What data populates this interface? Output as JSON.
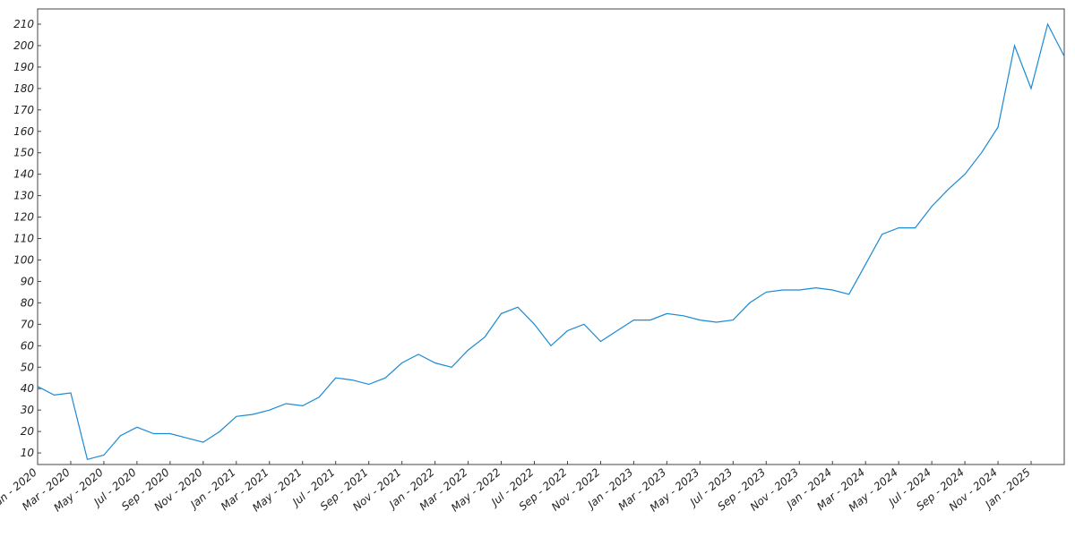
{
  "chart_data": {
    "type": "line",
    "x": [
      "2020-01",
      "2020-02",
      "2020-03",
      "2020-04",
      "2020-05",
      "2020-06",
      "2020-07",
      "2020-08",
      "2020-09",
      "2020-10",
      "2020-11",
      "2020-12",
      "2021-01",
      "2021-02",
      "2021-03",
      "2021-04",
      "2021-05",
      "2021-06",
      "2021-07",
      "2021-08",
      "2021-09",
      "2021-10",
      "2021-11",
      "2021-12",
      "2022-01",
      "2022-02",
      "2022-03",
      "2022-04",
      "2022-05",
      "2022-06",
      "2022-07",
      "2022-08",
      "2022-09",
      "2022-10",
      "2022-11",
      "2022-12",
      "2023-01",
      "2023-02",
      "2023-03",
      "2023-04",
      "2023-05",
      "2023-06",
      "2023-07",
      "2023-08",
      "2023-09",
      "2023-10",
      "2023-11",
      "2023-12",
      "2024-01",
      "2024-02",
      "2024-03",
      "2024-04",
      "2024-05",
      "2024-06",
      "2024-07",
      "2024-08",
      "2024-09",
      "2024-10",
      "2024-11",
      "2024-12",
      "2025-01",
      "2025-02",
      "2025-03"
    ],
    "series": [
      {
        "color": "#1a8ad4",
        "values": [
          41,
          37,
          38,
          7,
          9,
          18,
          22,
          19,
          19,
          17,
          15,
          20,
          27,
          28,
          30,
          33,
          32,
          36,
          45,
          44,
          42,
          45,
          52,
          56,
          52,
          50,
          58,
          64,
          75,
          78,
          70,
          60,
          67,
          70,
          62,
          67,
          72,
          72,
          75,
          74,
          72,
          71,
          72,
          80,
          85,
          86,
          86,
          87,
          86,
          84,
          98,
          112,
          115,
          115,
          125,
          133,
          140,
          150,
          162,
          200,
          180,
          210,
          195
        ]
      }
    ],
    "xlim": [
      "2020-01",
      "2025-03"
    ],
    "xticks": [
      {
        "value": "2020-01",
        "label": "Jan - 2020"
      },
      {
        "value": "2020-03",
        "label": "Mar - 2020"
      },
      {
        "value": "2020-05",
        "label": "May - 2020"
      },
      {
        "value": "2020-07",
        "label": "Jul - 2020"
      },
      {
        "value": "2020-09",
        "label": "Sep - 2020"
      },
      {
        "value": "2020-11",
        "label": "Nov - 2020"
      },
      {
        "value": "2021-01",
        "label": "Jan - 2021"
      },
      {
        "value": "2021-03",
        "label": "Mar - 2021"
      },
      {
        "value": "2021-05",
        "label": "May - 2021"
      },
      {
        "value": "2021-07",
        "label": "Jul - 2021"
      },
      {
        "value": "2021-09",
        "label": "Sep - 2021"
      },
      {
        "value": "2021-11",
        "label": "Nov - 2021"
      },
      {
        "value": "2022-01",
        "label": "Jan - 2022"
      },
      {
        "value": "2022-03",
        "label": "Mar - 2022"
      },
      {
        "value": "2022-05",
        "label": "May - 2022"
      },
      {
        "value": "2022-07",
        "label": "Jul - 2022"
      },
      {
        "value": "2022-09",
        "label": "Sep - 2022"
      },
      {
        "value": "2022-11",
        "label": "Nov - 2022"
      },
      {
        "value": "2023-01",
        "label": "Jan - 2023"
      },
      {
        "value": "2023-03",
        "label": "Mar - 2023"
      },
      {
        "value": "2023-05",
        "label": "May - 2023"
      },
      {
        "value": "2023-07",
        "label": "Jul - 2023"
      },
      {
        "value": "2023-09",
        "label": "Sep - 2023"
      },
      {
        "value": "2023-11",
        "label": "Nov - 2023"
      },
      {
        "value": "2024-01",
        "label": "Jan - 2024"
      },
      {
        "value": "2024-03",
        "label": "Mar - 2024"
      },
      {
        "value": "2024-05",
        "label": "May - 2024"
      },
      {
        "value": "2024-07",
        "label": "Jul - 2024"
      },
      {
        "value": "2024-09",
        "label": "Sep - 2024"
      },
      {
        "value": "2024-11",
        "label": "Nov - 2024"
      },
      {
        "value": "2025-01",
        "label": "Jan - 2025"
      }
    ],
    "ylim": [
      4.6,
      217.1
    ],
    "yticks": [
      10,
      20,
      30,
      40,
      50,
      60,
      70,
      80,
      90,
      100,
      110,
      120,
      130,
      140,
      150,
      160,
      170,
      180,
      190,
      200,
      210
    ],
    "grid": false
  }
}
